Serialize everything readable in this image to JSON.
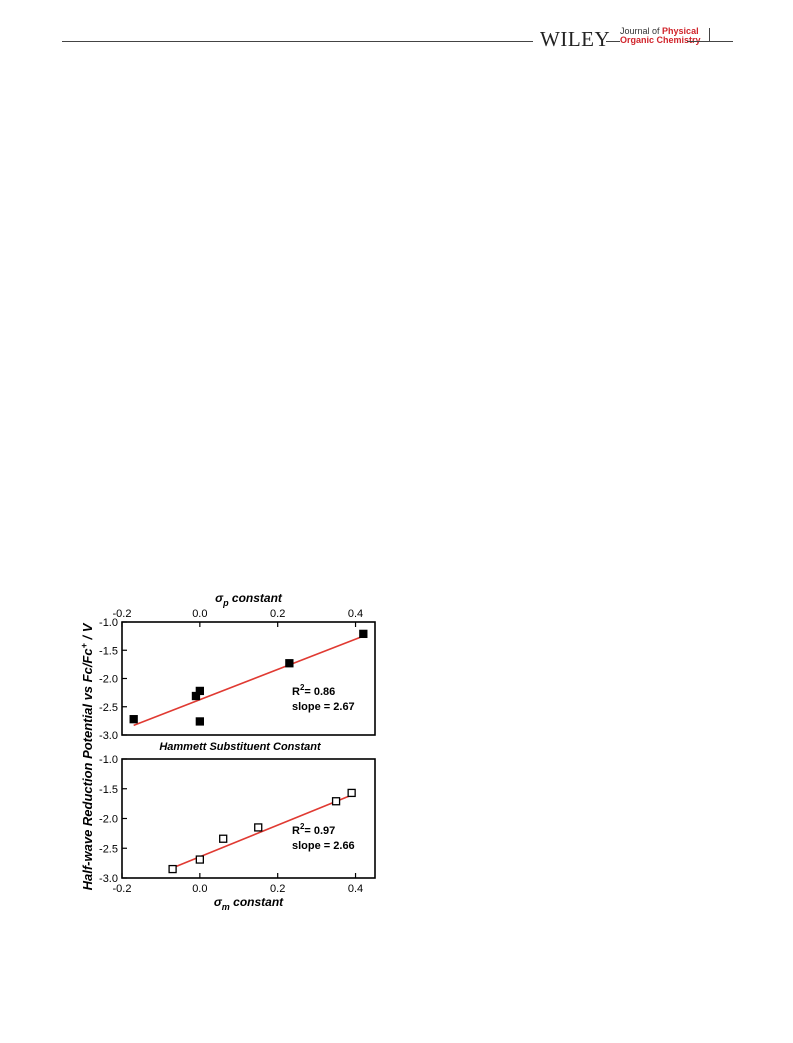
{
  "header": {
    "publisher": "WILEY",
    "journal_line1_a": "Journal of",
    "journal_line1_b": "Physical",
    "journal_line2": "Organic Chemistry"
  },
  "figure": {
    "shared_ylabel": "Half-wave Reduction Potential vs Fc/Fc",
    "shared_ylabel_sup": "+",
    "shared_ylabel_unit": " / V",
    "middle_label": "Hammett Substituent Constant"
  },
  "chart_data": [
    {
      "type": "scatter",
      "xlabel_symbol": "σ",
      "xlabel_sub": "p",
      "xlabel_text": " constant",
      "xaxis_position": "top",
      "xlim": [
        -0.2,
        0.45
      ],
      "ylim": [
        -3.0,
        -1.0
      ],
      "x_ticks": [
        "-0.2",
        "0.0",
        "0.2",
        "0.4"
      ],
      "x_tick_values": [
        -0.2,
        0.0,
        0.2,
        0.4
      ],
      "y_ticks": [
        "-1.0",
        "-1.5",
        "-2.0",
        "-2.5",
        "-3.0"
      ],
      "y_tick_values": [
        -1.0,
        -1.5,
        -2.0,
        -2.5,
        -3.0
      ],
      "marker": "filled-square",
      "points": [
        {
          "x": -0.17,
          "y": -2.72
        },
        {
          "x": -0.01,
          "y": -2.31
        },
        {
          "x": 0.0,
          "y": -2.22
        },
        {
          "x": 0.0,
          "y": -2.76
        },
        {
          "x": 0.23,
          "y": -1.73
        },
        {
          "x": 0.42,
          "y": -1.21
        }
      ],
      "fit_line": {
        "x": [
          -0.17,
          0.42
        ],
        "y": [
          -2.83,
          -1.25
        ],
        "color": "#e03a32"
      },
      "annotation_r2_prefix": "R",
      "annotation_r2_sup": "2",
      "annotation_r2_value": "= 0.86",
      "annotation_slope": "slope = 2.67"
    },
    {
      "type": "scatter",
      "xlabel_symbol": "σ",
      "xlabel_sub": "m",
      "xlabel_text": " constant",
      "xaxis_position": "bottom",
      "xlim": [
        -0.2,
        0.45
      ],
      "ylim": [
        -3.0,
        -1.0
      ],
      "x_ticks": [
        "-0.2",
        "0.0",
        "0.2",
        "0.4"
      ],
      "x_tick_values": [
        -0.2,
        0.0,
        0.2,
        0.4
      ],
      "y_ticks": [
        "-1.0",
        "-1.5",
        "-2.0",
        "-2.5",
        "-3.0"
      ],
      "y_tick_values": [
        -1.0,
        -1.5,
        -2.0,
        -2.5,
        -3.0
      ],
      "marker": "open-square",
      "points": [
        {
          "x": -0.07,
          "y": -2.85
        },
        {
          "x": 0.0,
          "y": -2.69
        },
        {
          "x": 0.06,
          "y": -2.34
        },
        {
          "x": 0.15,
          "y": -2.15
        },
        {
          "x": 0.35,
          "y": -1.71
        },
        {
          "x": 0.39,
          "y": -1.57
        }
      ],
      "fit_line": {
        "x": [
          -0.07,
          0.4
        ],
        "y": [
          -2.83,
          -1.58
        ],
        "color": "#e03a32"
      },
      "annotation_r2_prefix": "R",
      "annotation_r2_sup": "2",
      "annotation_r2_value": "= 0.97",
      "annotation_slope": "slope = 2.66"
    }
  ]
}
